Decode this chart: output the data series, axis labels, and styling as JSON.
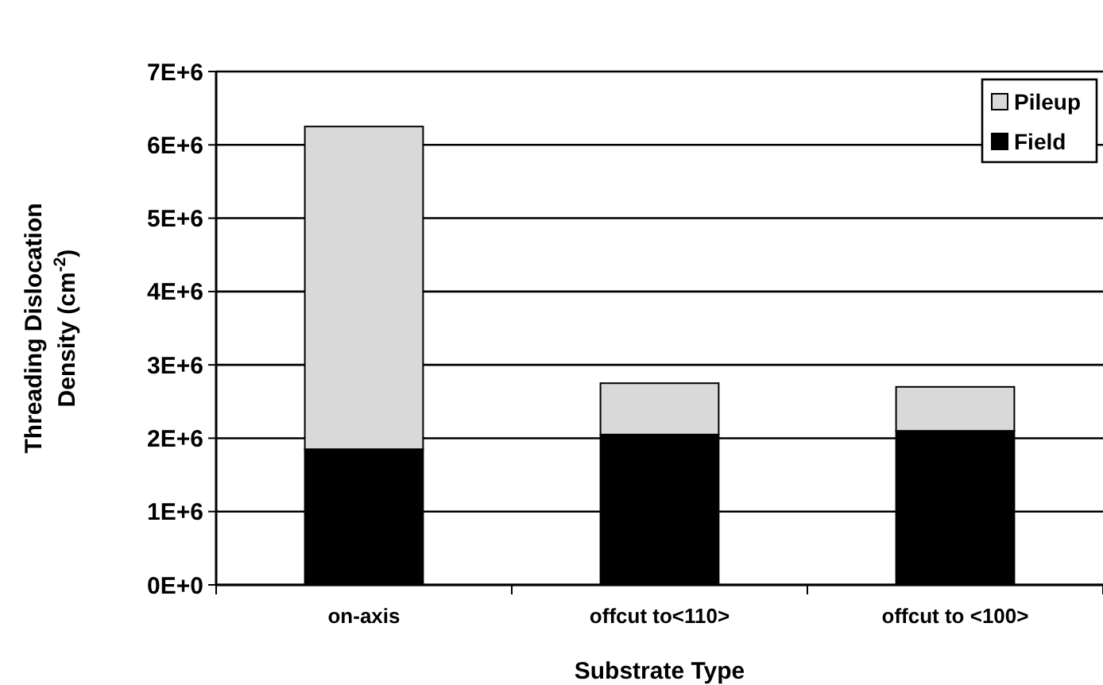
{
  "chart_data": {
    "type": "bar",
    "stacked": true,
    "xlabel": "Substrate Type",
    "ylabel": "Threading Dislocation Density (cm$^{-2}$)",
    "categories": [
      "on-axis",
      "offcut to<110>",
      "offcut to <100>"
    ],
    "series": [
      {
        "name": "Field",
        "color": "#000000",
        "values": [
          1850000,
          2050000,
          2100000
        ]
      },
      {
        "name": "Pileup",
        "color": "#d9d9d9",
        "values": [
          4400000,
          700000,
          600000
        ]
      }
    ],
    "ylim": [
      0,
      7000000
    ],
    "yticks": [
      {
        "value": 0,
        "label": "0E+0"
      },
      {
        "value": 1000000,
        "label": "1E+6"
      },
      {
        "value": 2000000,
        "label": "2E+6"
      },
      {
        "value": 3000000,
        "label": "3E+6"
      },
      {
        "value": 4000000,
        "label": "4E+6"
      },
      {
        "value": 5000000,
        "label": "5E+6"
      },
      {
        "value": 6000000,
        "label": "6E+6"
      },
      {
        "value": 7000000,
        "label": "7E+6"
      }
    ],
    "grid": "y",
    "legend": "top right"
  }
}
